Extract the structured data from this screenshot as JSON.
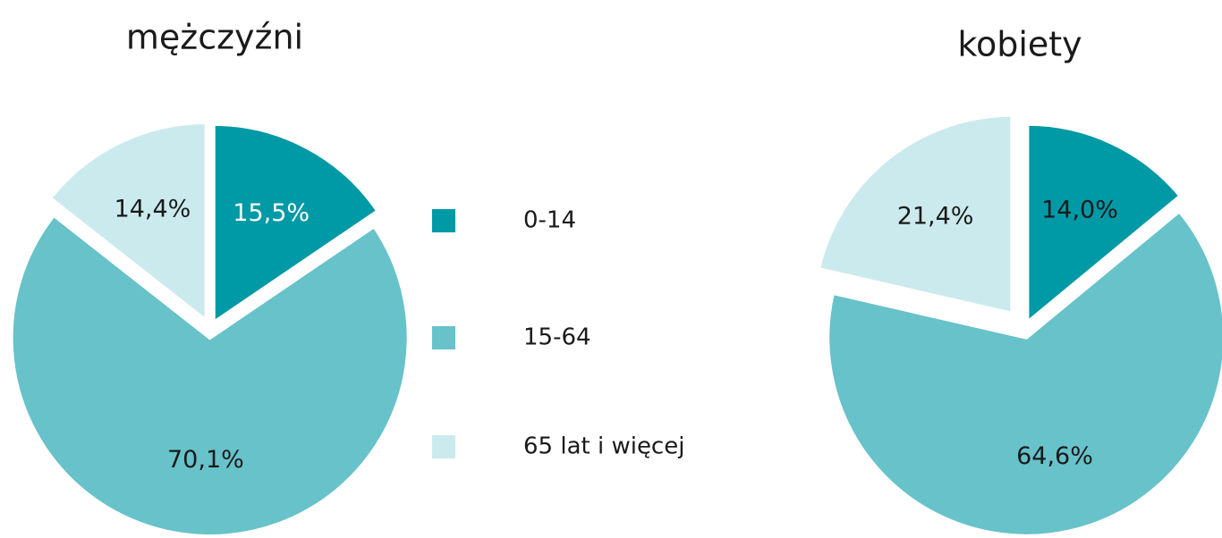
{
  "chart_data": [
    {
      "type": "pie",
      "title": "mężczyźni",
      "categories": [
        "0-14",
        "15-64",
        "65 lat i więcej"
      ],
      "colors": [
        "#0099a6",
        "#67c2ca",
        "#cbeaed"
      ],
      "values": [
        15.5,
        70.1,
        14.4
      ],
      "value_labels": [
        "15,5%",
        "70,1%",
        "14,4%"
      ]
    },
    {
      "type": "pie",
      "title": "kobiety",
      "values": [
        14.0,
        64.6,
        21.4
      ],
      "value_labels": [
        "14,0%",
        "64,6%",
        "21,4%"
      ]
    }
  ]
}
